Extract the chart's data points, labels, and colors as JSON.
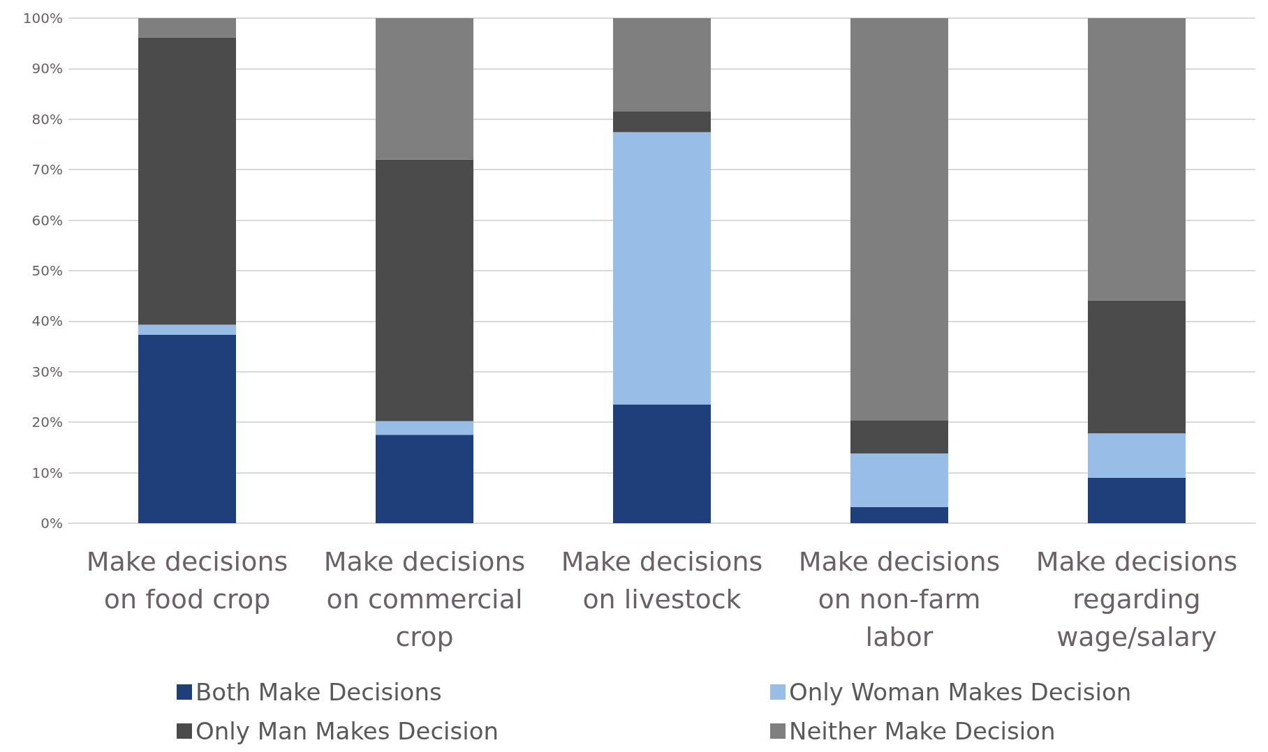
{
  "chart_data": {
    "type": "bar",
    "stacked": true,
    "categories": [
      "Make decisions on food crop",
      "Make decisions on commercial crop",
      "Make decisions on livestock",
      "Make decisions on non-farm labor",
      "Make decisions regarding wage/salary"
    ],
    "series": [
      {
        "name": "Both Make Decisions",
        "color": "#1f3f7a",
        "values": [
          37.3,
          17.5,
          23.5,
          3.2,
          9.0
        ]
      },
      {
        "name": "Only Woman Makes Decision",
        "color": "#98bde6",
        "values": [
          2.0,
          2.7,
          53.9,
          10.6,
          8.8
        ]
      },
      {
        "name": "Only Man Makes Decision",
        "color": "#4b4b4b",
        "values": [
          56.9,
          51.8,
          4.1,
          6.5,
          26.3
        ]
      },
      {
        "name": "Neither Make Decision",
        "color": "#7f7f7f",
        "values": [
          3.8,
          28.0,
          18.5,
          79.7,
          55.9
        ]
      }
    ],
    "ylim": [
      0,
      100
    ],
    "yticks": [
      {
        "value": 0,
        "label": "0%"
      },
      {
        "value": 10,
        "label": "10%"
      },
      {
        "value": 20,
        "label": "20%"
      },
      {
        "value": 30,
        "label": "30%"
      },
      {
        "value": 40,
        "label": "40%"
      },
      {
        "value": 50,
        "label": "50%"
      },
      {
        "value": 60,
        "label": "60%"
      },
      {
        "value": 70,
        "label": "70%"
      },
      {
        "value": 80,
        "label": "80%"
      },
      {
        "value": 90,
        "label": "90%"
      },
      {
        "value": 100,
        "label": "100%"
      }
    ],
    "grid": "y",
    "legend": "bottom"
  }
}
